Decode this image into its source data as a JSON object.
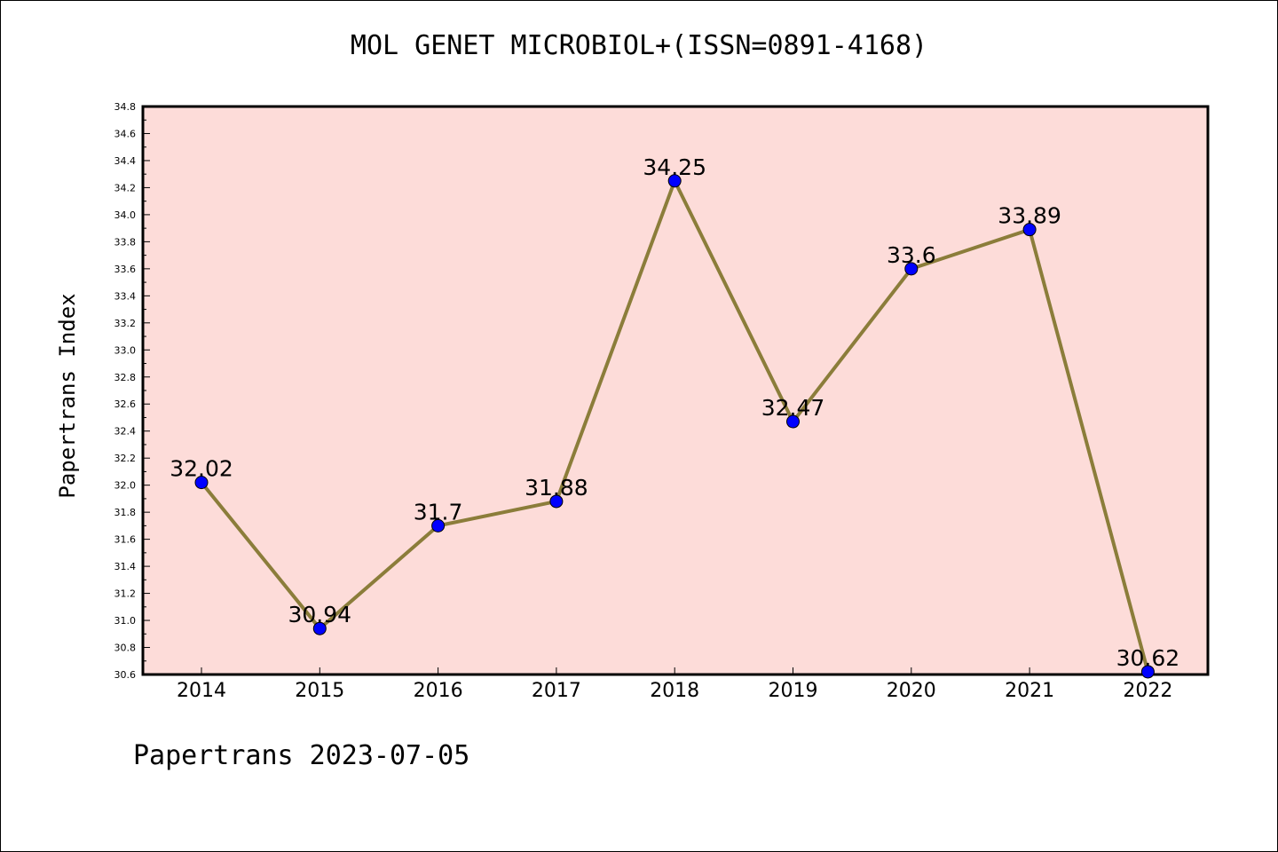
{
  "chart_data": {
    "type": "line",
    "title": "MOL GENET MICROBIOL+(ISSN=0891-4168)",
    "xlabel": "",
    "ylabel": "Papertrans Index",
    "footer": "Papertrans 2023-07-05",
    "x": [
      "2014",
      "2015",
      "2016",
      "2017",
      "2018",
      "2019",
      "2020",
      "2021",
      "2022"
    ],
    "values": [
      32.02,
      30.94,
      31.7,
      31.88,
      34.25,
      32.47,
      33.6,
      33.89,
      30.62
    ],
    "data_labels": [
      "32.02",
      "30.94",
      "31.7",
      "31.88",
      "34.25",
      "32.47",
      "33.6",
      "33.89",
      "30.62"
    ],
    "ylim": [
      30.6,
      34.8
    ],
    "yticks": [
      "30.6",
      "30.8",
      "31.0",
      "31.2",
      "31.4",
      "31.6",
      "31.8",
      "32.0",
      "32.2",
      "32.4",
      "32.6",
      "32.8",
      "33.0",
      "33.2",
      "33.4",
      "33.6",
      "33.8",
      "34.0",
      "34.2",
      "34.4",
      "34.6",
      "34.8"
    ],
    "colors": {
      "plot_bg": "#fddcd9",
      "line": "#8b7d3a",
      "marker": "#0000ff"
    },
    "grid": false,
    "legend": "none"
  }
}
